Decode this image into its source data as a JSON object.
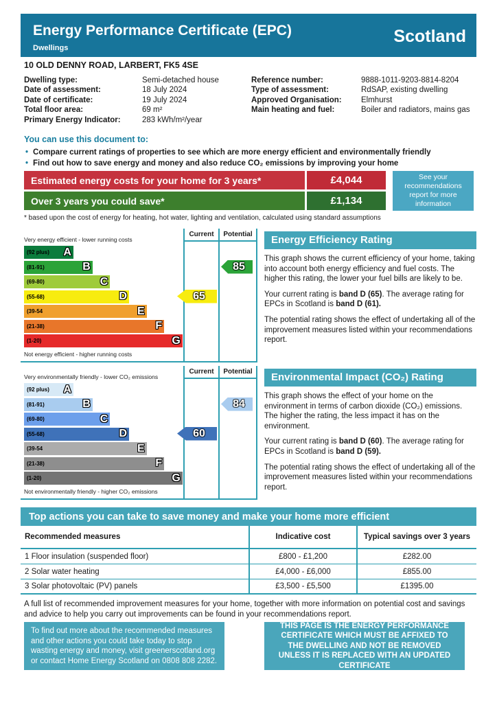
{
  "colors": {
    "header_teal": "#17759B",
    "section_teal": "#44A5B9",
    "box_teal": "#4AA6BB",
    "note_teal": "#4BA7C3",
    "line_teal": "#2E9FB2",
    "teal_text": "#1A7FA0",
    "red_label": "#C5333E",
    "red_value": "#C02B37",
    "green_label": "#3D7F2D",
    "green_value": "#2E7030",
    "text_dark": "#1A1A1A"
  },
  "header": {
    "title": "Energy Performance Certificate (EPC)",
    "subtitle": "Dwellings",
    "region": "Scotland"
  },
  "address": "10 OLD DENNY ROAD, LARBERT, FK5 4SE",
  "details": {
    "left": [
      {
        "label": "Dwelling type:",
        "value": "Semi-detached house"
      },
      {
        "label": "Date of assessment:",
        "value": "18 July 2024"
      },
      {
        "label": "Date of certificate:",
        "value": "19 July 2024"
      },
      {
        "label": "Total floor area:",
        "value": "69 m²"
      },
      {
        "label": "Primary Energy Indicator:",
        "value": "283 kWh/m²/year"
      }
    ],
    "right": [
      {
        "label": "Reference number:",
        "value": "9888-1011-9203-8814-8204"
      },
      {
        "label": "Type of assessment:",
        "value": "RdSAP, existing dwelling"
      },
      {
        "label": "Approved Organisation:",
        "value": "Elmhurst"
      },
      {
        "label": "Main heating and fuel:",
        "value": "Boiler and radiators, mains gas"
      }
    ]
  },
  "usage": {
    "heading": "You can use this document to:",
    "bullets": [
      "Compare current ratings of properties to see which are more energy efficient and environmentally friendly",
      "Find out how to save energy and money and also reduce CO₂ emissions by improving your home"
    ]
  },
  "costs": {
    "rows": [
      {
        "label": "Estimated energy costs for your home for 3 years*",
        "value": "£4,044"
      },
      {
        "label": "Over 3 years you could save*",
        "value": "£1,134"
      }
    ],
    "side_note": "See your recommendations report for more information",
    "footnote": "* based upon the cost of energy for heating, hot water, lighting and ventilation, calculated using standard assumptions"
  },
  "eer": {
    "col_current": "Current",
    "col_potential": "Potential",
    "top_label": "Very energy efficient - lower running costs",
    "bottom_label": "Not energy efficient - higher running costs",
    "bands": [
      {
        "letter": "A",
        "range": "(92 plus)",
        "color": "#0C7C3D",
        "width": "31%"
      },
      {
        "letter": "B",
        "range": "(81-91)",
        "color": "#2BA338",
        "width": "43%"
      },
      {
        "letter": "C",
        "range": "(69-80)",
        "color": "#9FCB3B",
        "width": "54%"
      },
      {
        "letter": "D",
        "range": "(55-68)",
        "color": "#F7EC0F",
        "width": "66%"
      },
      {
        "letter": "E",
        "range": "(39-54",
        "color": "#F0A02E",
        "width": "77%"
      },
      {
        "letter": "F",
        "range": "(21-38)",
        "color": "#E8762A",
        "width": "88%"
      },
      {
        "letter": "G",
        "range": "(1-20)",
        "color": "#E62A2A",
        "width": "99.5%"
      }
    ],
    "current": {
      "value": "65",
      "color": "#F7EC0F",
      "row": 3
    },
    "potential": {
      "value": "85",
      "color": "#2BA338",
      "row": 1
    }
  },
  "co2": {
    "col_current": "Current",
    "col_potential": "Potential",
    "top_label": "Very environmentally friendly - lower CO₂ emissions",
    "bottom_label": "Not environmentally friendly - higher CO₂ emissions",
    "bands": [
      {
        "letter": "A",
        "range": "(92 plus)",
        "color": "#D7E9F6",
        "width": "31%"
      },
      {
        "letter": "B",
        "range": "(81-91)",
        "color": "#A9CCEF",
        "width": "43%"
      },
      {
        "letter": "C",
        "range": "(69-80)",
        "color": "#6D9FEB",
        "width": "54%"
      },
      {
        "letter": "D",
        "range": "(55-68)",
        "color": "#3F72B9",
        "width": "66%"
      },
      {
        "letter": "E",
        "range": "(39-54",
        "color": "#ACACAC",
        "width": "77%"
      },
      {
        "letter": "F",
        "range": "(21-38)",
        "color": "#8E8E8E",
        "width": "88%"
      },
      {
        "letter": "G",
        "range": "(1-20)",
        "color": "#747474",
        "width": "99.5%"
      }
    ],
    "current": {
      "value": "60",
      "color": "#3F72B9",
      "row": 3
    },
    "potential": {
      "value": "84",
      "color": "#A9CCEF",
      "row": 1
    }
  },
  "eer_text": {
    "title": "Energy Efficiency Rating",
    "p1": "This graph shows the current efficiency of your home, taking into account both energy efficiency and fuel costs. The higher this rating, the lower your fuel bills are likely to be.",
    "p2_a": "Your current rating is ",
    "p2_b": "band D (65)",
    "p2_c": ". The average rating for EPCs in Scotland is ",
    "p2_d": "band D (61).",
    "p3": "The potential rating shows the effect of undertaking all of the improvement measures listed within your recommendations report."
  },
  "co2_text": {
    "title": "Environmental Impact (CO₂) Rating",
    "p1": "This graph shows the effect of your home on the environment in terms of carbon dioxide (CO₂) emissions. The higher the rating, the less impact it has on the environment.",
    "p2_a": "Your current rating is ",
    "p2_b": "band D (60)",
    "p2_c": ". The average rating for EPCs in Scotland is ",
    "p2_d": "band D (59).",
    "p3": "The potential rating shows the effect of undertaking all of the improvement measures listed within your recommendations report."
  },
  "top_actions": {
    "title": "Top actions you can take to save money and make your home more efficient",
    "columns": [
      "Recommended measures",
      "Indicative cost",
      "Typical savings over 3 years"
    ],
    "rows": [
      {
        "measure": "1 Floor insulation (suspended floor)",
        "cost": "£800 - £1,200",
        "savings": "£282.00"
      },
      {
        "measure": "2 Solar water heating",
        "cost": "£4,000 - £6,000",
        "savings": "£855.00"
      },
      {
        "measure": "3 Solar photovoltaic (PV) panels",
        "cost": "£3,500 - £5,500",
        "savings": "£1395.00"
      }
    ]
  },
  "full_list_note": "A full list of recommended improvement measures for your home, together with more information on potential cost and savings and advice to help you carry out improvements can be found in your recommendations report.",
  "boxes": {
    "left": "To find out more about the recommended measures and other actions you could take today to stop wasting energy and money, visit greenerscotland.org or contact Home Energy Scotland on 0808 808 2282.",
    "right": "THIS PAGE IS THE ENERGY PERFORMANCE CERTIFICATE WHICH MUST BE AFFIXED TO THE DWELLING AND NOT BE REMOVED UNLESS IT IS REPLACED WITH AN UPDATED CERTIFICATE"
  },
  "chart_data": [
    {
      "type": "bar",
      "title": "Energy Efficiency Rating",
      "categories": [
        "A (92 plus)",
        "B (81-91)",
        "C (69-80)",
        "D (55-68)",
        "E (39-54)",
        "F (21-38)",
        "G (1-20)"
      ],
      "current": 65,
      "current_band": "D",
      "potential": 85,
      "potential_band": "B"
    },
    {
      "type": "bar",
      "title": "Environmental Impact (CO₂) Rating",
      "categories": [
        "A (92 plus)",
        "B (81-91)",
        "C (69-80)",
        "D (55-68)",
        "E (39-54)",
        "F (21-38)",
        "G (1-20)"
      ],
      "current": 60,
      "current_band": "D",
      "potential": 84,
      "potential_band": "B"
    }
  ]
}
